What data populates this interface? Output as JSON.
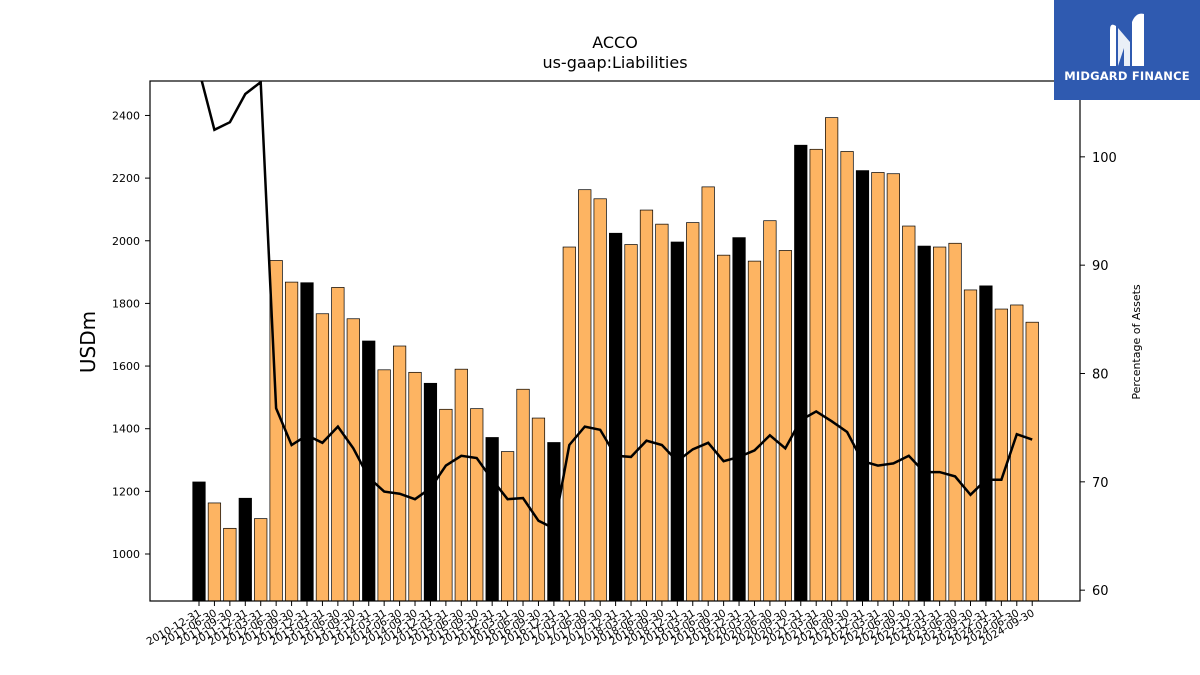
{
  "brand": {
    "name": "MIDGARD FINANCE",
    "logo_icon": "midgard-m-logo",
    "background": "#2f5ab0"
  },
  "chart_data": {
    "type": "bar",
    "title": "ACCO",
    "subtitle": "us-gaap:Liabilities",
    "ylabel": "USDm",
    "y2label": "Percentage of Assets",
    "ylim": [
      850,
      2510
    ],
    "y2lim": [
      59,
      107
    ],
    "yticks": [
      1000,
      1200,
      1400,
      1600,
      1800,
      2000,
      2200,
      2400
    ],
    "y2ticks": [
      60,
      70,
      80,
      90,
      100
    ],
    "colors": {
      "annual": "#000000",
      "quarterly": "#fdb462",
      "line": "#000000"
    },
    "categories": [
      "2010-12-31",
      "2011-06-30",
      "2011-09-30",
      "2011-12-31",
      "2012-03-31",
      "2012-06-30",
      "2012-09-30",
      "2012-12-31",
      "2013-03-31",
      "2013-06-30",
      "2013-09-30",
      "2013-12-31",
      "2014-03-31",
      "2014-06-30",
      "2014-09-30",
      "2014-12-31",
      "2015-03-31",
      "2015-06-30",
      "2015-09-30",
      "2015-12-31",
      "2016-03-31",
      "2016-06-30",
      "2016-09-30",
      "2016-12-31",
      "2017-03-31",
      "2017-06-30",
      "2017-09-30",
      "2017-12-31",
      "2018-03-31",
      "2018-06-30",
      "2018-09-30",
      "2018-12-31",
      "2019-03-31",
      "2019-06-30",
      "2019-09-30",
      "2019-12-31",
      "2020-03-31",
      "2020-06-30",
      "2020-09-30",
      "2020-12-31",
      "2021-03-31",
      "2021-06-30",
      "2021-09-30",
      "2021-12-31",
      "2022-03-31",
      "2022-06-30",
      "2022-09-30",
      "2022-12-31",
      "2023-03-31",
      "2023-06-30",
      "2023-09-30",
      "2023-12-31",
      "2024-03-31",
      "2024-06-30",
      "2024-09-30"
    ],
    "annual": [
      true,
      false,
      false,
      true,
      false,
      false,
      false,
      true,
      false,
      false,
      false,
      true,
      false,
      false,
      false,
      true,
      false,
      false,
      false,
      true,
      false,
      false,
      false,
      true,
      false,
      false,
      false,
      true,
      false,
      false,
      false,
      true,
      false,
      false,
      false,
      true,
      false,
      false,
      false,
      true,
      false,
      false,
      false,
      true,
      false,
      false,
      false,
      true,
      false,
      false,
      false,
      true,
      false,
      false,
      false
    ],
    "series": [
      {
        "name": "Liabilities",
        "type": "bar",
        "values": [
          1230,
          1163,
          1082,
          1178,
          1113,
          1937,
          1868,
          1866,
          1767,
          1851,
          1751,
          1680,
          1588,
          1664,
          1580,
          1545,
          1462,
          1590,
          1464,
          1372,
          1327,
          1526,
          1434,
          1356,
          1980,
          2163,
          2134,
          2024,
          1988,
          2098,
          2053,
          1996,
          2058,
          2172,
          1954,
          2010,
          1935,
          2064,
          1969,
          2305,
          2292,
          2393,
          2285,
          2224,
          2218,
          2214,
          2047,
          1983,
          1980,
          1992,
          1843,
          1856,
          1782,
          1795,
          1740
        ]
      },
      {
        "name": "Percentage of Assets",
        "type": "line",
        "axis": "right",
        "values": [
          108,
          102.5,
          103.2,
          105.8,
          106.9,
          76.8,
          73.4,
          74.3,
          73.6,
          75.1,
          73.1,
          70.4,
          69.1,
          68.9,
          68.4,
          69.4,
          71.5,
          72.4,
          72.2,
          70.2,
          68.4,
          68.5,
          66.4,
          65.7,
          73.4,
          75.1,
          74.8,
          72.4,
          72.3,
          73.8,
          73.4,
          71.9,
          73.0,
          73.6,
          71.9,
          72.3,
          72.9,
          74.3,
          73.1,
          75.7,
          76.5,
          75.6,
          74.6,
          71.9,
          71.5,
          71.7,
          72.4,
          70.9,
          70.9,
          70.5,
          68.8,
          70.2,
          70.2,
          74.4,
          73.9
        ]
      }
    ]
  }
}
